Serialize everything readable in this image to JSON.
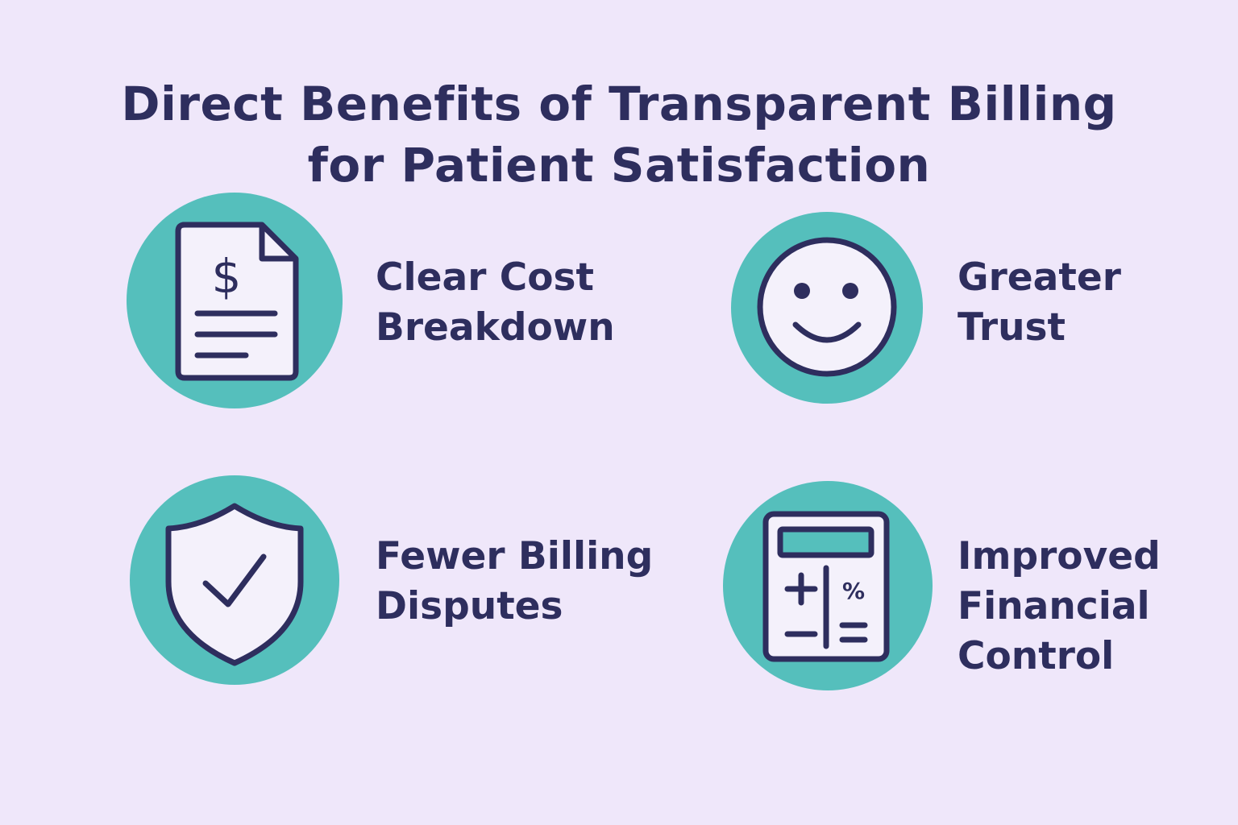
{
  "title": {
    "line1": "Direct Benefits of Transparent Billing",
    "line2": "for Patient Satisfaction"
  },
  "colors": {
    "background": "#EFE7FA",
    "accent": "#55BFBC",
    "ink": "#2E2E5E",
    "icon_fill": "#F4F1FB"
  },
  "benefits": [
    {
      "icon": "invoice-dollar-icon",
      "lines": [
        "Clear Cost",
        "Breakdown"
      ]
    },
    {
      "icon": "smiley-face-icon",
      "lines": [
        "Greater",
        "Trust"
      ]
    },
    {
      "icon": "shield-check-icon",
      "lines": [
        "Fewer Billing",
        "Disputes"
      ]
    },
    {
      "icon": "calculator-icon",
      "lines": [
        "Improved",
        "Financial",
        "Control"
      ]
    }
  ],
  "calculator": {
    "plus": "+",
    "percent": "%"
  },
  "invoice": {
    "symbol": "$"
  }
}
